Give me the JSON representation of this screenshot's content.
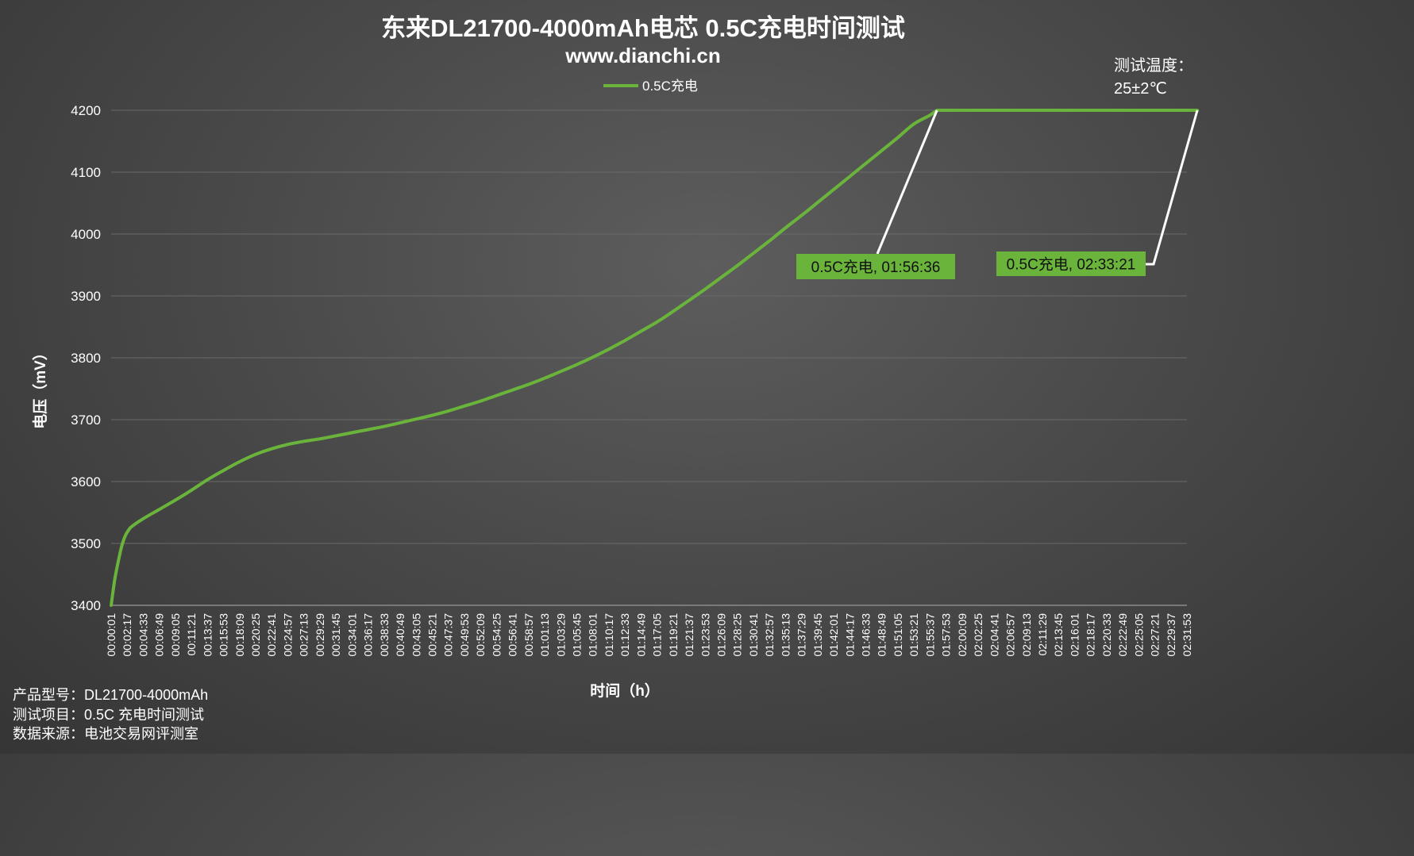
{
  "chart_data": {
    "type": "line",
    "title": "东来DL21700-4000mAh电芯 0.5C充电时间测试",
    "subtitle": "www.dianchi.cn",
    "xlabel": "时间（h）",
    "ylabel": "电压（mV）",
    "ylim": [
      3400,
      4200
    ],
    "y_ticks": [
      3400,
      3500,
      3600,
      3700,
      3800,
      3900,
      4000,
      4100,
      4200
    ],
    "grid": true,
    "legend_position": "top-center",
    "colors": {
      "series": "#6ab43c",
      "background": "#474747",
      "grid": "#6a6a6a"
    },
    "x_ticks": [
      "00:00:01",
      "00:02:17",
      "00:04:33",
      "00:06:49",
      "00:09:05",
      "00:11:21",
      "00:13:37",
      "00:15:53",
      "00:18:09",
      "00:20:25",
      "00:22:41",
      "00:24:57",
      "00:27:13",
      "00:29:29",
      "00:31:45",
      "00:34:01",
      "00:36:17",
      "00:38:33",
      "00:40:49",
      "00:43:05",
      "00:45:21",
      "00:47:37",
      "00:49:53",
      "00:52:09",
      "00:54:25",
      "00:56:41",
      "00:58:57",
      "01:01:13",
      "01:03:29",
      "01:05:45",
      "01:08:01",
      "01:10:17",
      "01:12:33",
      "01:14:49",
      "01:17:05",
      "01:19:21",
      "01:21:37",
      "01:23:53",
      "01:26:09",
      "01:28:25",
      "01:30:41",
      "01:32:57",
      "01:35:13",
      "01:37:29",
      "01:39:45",
      "01:42:01",
      "01:44:17",
      "01:46:33",
      "01:48:49",
      "01:51:05",
      "01:53:21",
      "01:55:37",
      "01:57:53",
      "02:00:09",
      "02:02:25",
      "02:04:41",
      "02:06:57",
      "02:09:13",
      "02:11:29",
      "02:13:45",
      "02:16:01",
      "02:18:17",
      "02:20:33",
      "02:22:49",
      "02:25:05",
      "02:27:21",
      "02:29:37",
      "02:31:53"
    ],
    "series": [
      {
        "name": "0.5C充电",
        "points": [
          [
            "00:00:01",
            3400
          ],
          [
            "00:00:30",
            3440
          ],
          [
            "00:01:00",
            3470
          ],
          [
            "00:01:30",
            3495
          ],
          [
            "00:02:00",
            3512
          ],
          [
            "00:02:30",
            3522
          ],
          [
            "00:03:00",
            3528
          ],
          [
            "00:04:33",
            3540
          ],
          [
            "00:06:49",
            3555
          ],
          [
            "00:09:05",
            3570
          ],
          [
            "00:11:21",
            3586
          ],
          [
            "00:13:37",
            3603
          ],
          [
            "00:15:53",
            3618
          ],
          [
            "00:18:09",
            3632
          ],
          [
            "00:20:25",
            3644
          ],
          [
            "00:22:41",
            3653
          ],
          [
            "00:24:57",
            3660
          ],
          [
            "00:27:13",
            3665
          ],
          [
            "00:29:29",
            3669
          ],
          [
            "00:31:45",
            3674
          ],
          [
            "00:34:01",
            3679
          ],
          [
            "00:36:17",
            3684
          ],
          [
            "00:38:33",
            3689
          ],
          [
            "00:40:49",
            3695
          ],
          [
            "00:43:05",
            3701
          ],
          [
            "00:45:21",
            3707
          ],
          [
            "00:47:37",
            3714
          ],
          [
            "00:49:53",
            3722
          ],
          [
            "00:52:09",
            3730
          ],
          [
            "00:54:25",
            3739
          ],
          [
            "00:56:41",
            3748
          ],
          [
            "00:58:57",
            3757
          ],
          [
            "01:01:13",
            3767
          ],
          [
            "01:03:29",
            3778
          ],
          [
            "01:05:45",
            3789
          ],
          [
            "01:08:01",
            3801
          ],
          [
            "01:10:17",
            3814
          ],
          [
            "01:12:33",
            3828
          ],
          [
            "01:14:49",
            3843
          ],
          [
            "01:17:05",
            3858
          ],
          [
            "01:19:21",
            3875
          ],
          [
            "01:21:37",
            3893
          ],
          [
            "01:23:53",
            3911
          ],
          [
            "01:26:09",
            3930
          ],
          [
            "01:28:25",
            3949
          ],
          [
            "01:30:41",
            3969
          ],
          [
            "01:32:57",
            3989
          ],
          [
            "01:35:13",
            4010
          ],
          [
            "01:37:29",
            4030
          ],
          [
            "01:39:45",
            4051
          ],
          [
            "01:42:01",
            4072
          ],
          [
            "01:44:17",
            4093
          ],
          [
            "01:46:33",
            4114
          ],
          [
            "01:48:49",
            4135
          ],
          [
            "01:51:05",
            4156
          ],
          [
            "01:53:21",
            4178
          ],
          [
            "01:55:37",
            4192
          ],
          [
            "01:56:36",
            4200
          ],
          [
            "02:33:21",
            4200
          ]
        ]
      }
    ],
    "annotations": [
      {
        "text": "0.5C充电, 01:56:36",
        "x": "01:56:36",
        "y": 4200
      },
      {
        "text": "0.5C充电, 02:33:21",
        "x": "02:33:21",
        "y": 4200
      }
    ]
  },
  "temperature_note": {
    "line1": "测试温度：",
    "line2": "25±2℃"
  },
  "info": {
    "model": "产品型号：DL21700-4000mAh",
    "item": "测试项目：0.5C 充电时间测试",
    "source": "数据来源：电池交易网评测室"
  }
}
